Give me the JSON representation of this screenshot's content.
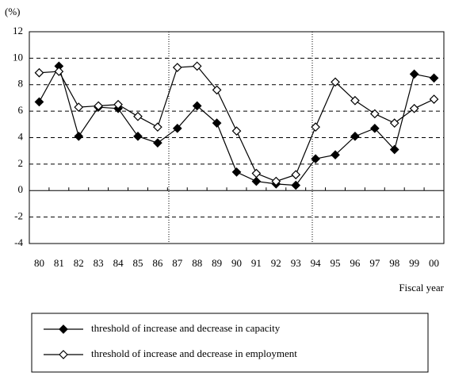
{
  "chart_data": {
    "type": "line",
    "y_label": "(%)",
    "x_label": "Fiscal year",
    "categories": [
      "80",
      "81",
      "82",
      "83",
      "84",
      "85",
      "86",
      "87",
      "88",
      "89",
      "90",
      "91",
      "92",
      "93",
      "94",
      "95",
      "96",
      "97",
      "98",
      "99",
      "00"
    ],
    "series": [
      {
        "name": "threshold of increase and decrease in capacity",
        "color": "#000000",
        "marker": "filled-diamond",
        "values": [
          6.7,
          9.4,
          4.1,
          6.3,
          6.2,
          4.1,
          3.6,
          4.7,
          6.4,
          5.1,
          1.4,
          0.7,
          0.5,
          0.4,
          2.4,
          2.7,
          4.1,
          4.7,
          3.1,
          8.8,
          8.5
        ]
      },
      {
        "name": "threshold of increase and decrease in employment",
        "color": "#000000",
        "marker": "open-diamond",
        "values": [
          8.9,
          9.0,
          6.3,
          6.4,
          6.5,
          5.6,
          4.8,
          9.3,
          9.4,
          7.6,
          4.5,
          1.3,
          0.7,
          1.2,
          4.8,
          8.2,
          6.8,
          5.8,
          5.1,
          6.2,
          6.9
        ]
      }
    ],
    "ylim": [
      -4,
      12
    ],
    "yticks": [
      -4,
      -2,
      0,
      2,
      4,
      6,
      8,
      10,
      12
    ],
    "grid": true,
    "legend": "bottom"
  }
}
